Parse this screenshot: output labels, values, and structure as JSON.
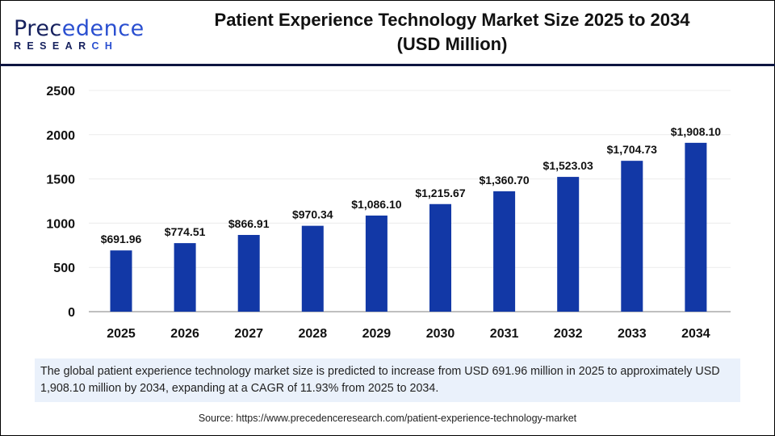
{
  "brand": {
    "logo_text": "Precedence Research"
  },
  "title_line1": "Patient Experience Technology Market Size 2025 to 2034",
  "title_line2": "(USD Million)",
  "colors": {
    "bar": "#1238a6",
    "header_line": "#0d1540",
    "note_bg": "#eaf1fb"
  },
  "chart_data": {
    "type": "bar",
    "categories": [
      "2025",
      "2026",
      "2027",
      "2028",
      "2029",
      "2030",
      "2031",
      "2032",
      "2033",
      "2034"
    ],
    "values": [
      691.96,
      774.51,
      866.91,
      970.34,
      1086.1,
      1215.67,
      1360.7,
      1523.03,
      1704.73,
      1908.1
    ],
    "data_labels": [
      "$691.96",
      "$774.51",
      "$866.91",
      "$970.34",
      "$1,086.10",
      "$1,215.67",
      "$1,360.70",
      "$1,523.03",
      "$1,704.73",
      "$1,908.10"
    ],
    "yticks": [
      0,
      500,
      1000,
      1500,
      2000,
      2500
    ],
    "ylim": [
      0,
      2500
    ],
    "grid": true,
    "xlabel": "",
    "ylabel": ""
  },
  "note": "The global patient experience technology market size is predicted to increase from USD 691.96 million in 2025 to approximately USD 1,908.10 million by 2034, expanding at a CAGR of 11.93% from 2025 to 2034.",
  "source": "Source: https://www.precedenceresearch.com/patient-experience-technology-market"
}
